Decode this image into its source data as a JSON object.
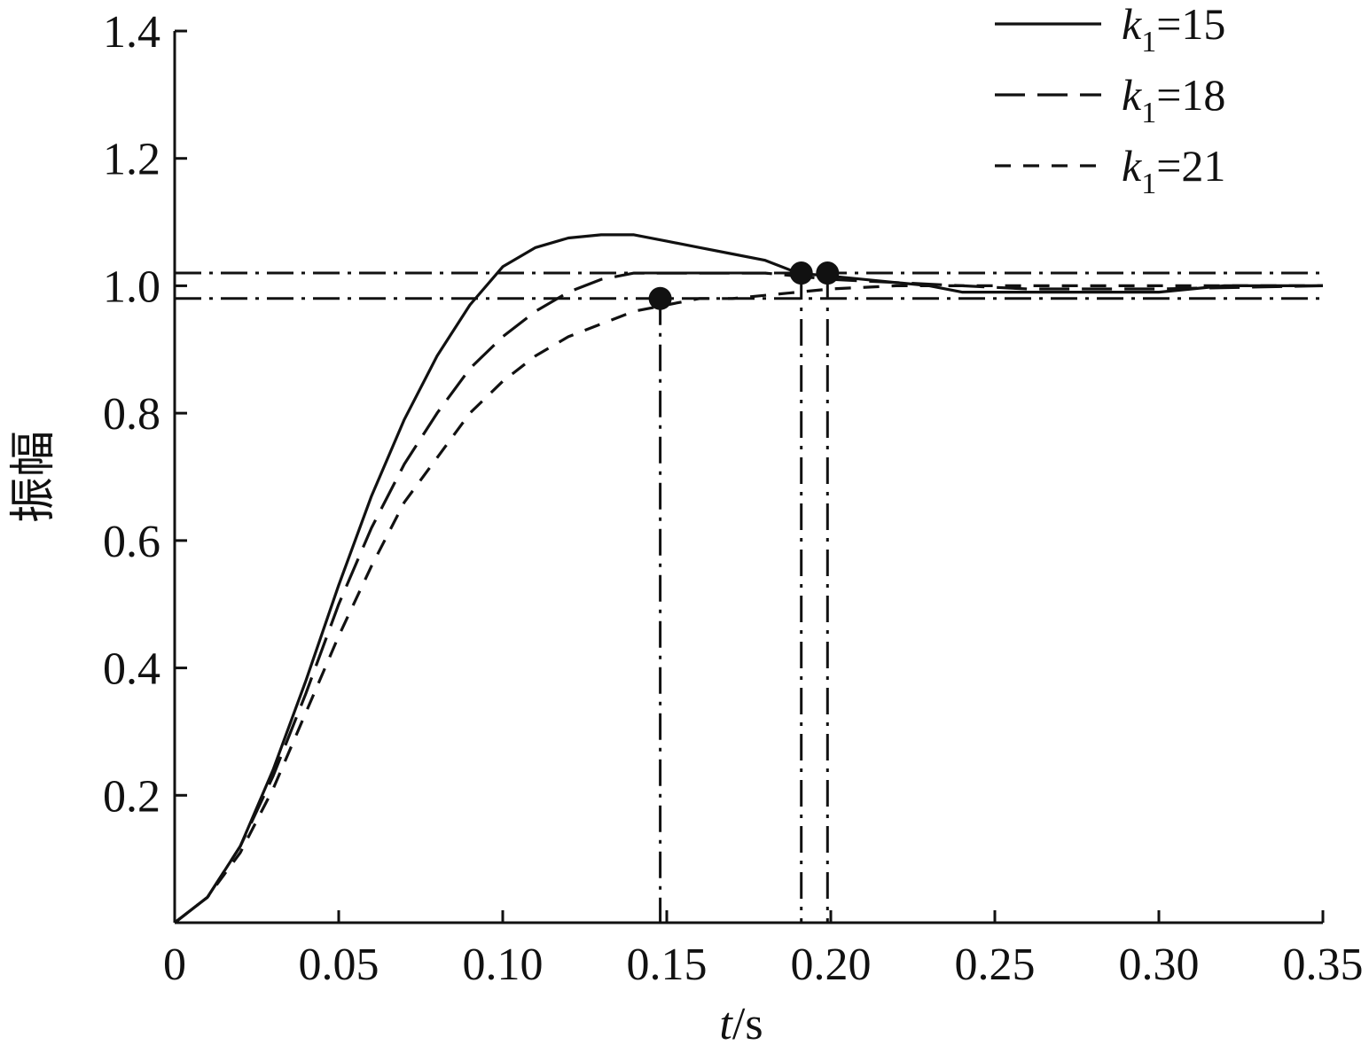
{
  "chart_data": {
    "type": "line",
    "xlabel_italic": "t",
    "xlabel_rest": "/s",
    "ylabel": "振幅",
    "xlim": [
      0,
      0.35
    ],
    "ylim": [
      0,
      1.4
    ],
    "x_ticks": [
      0,
      0.05,
      0.1,
      0.15,
      0.2,
      0.25,
      0.3,
      0.35
    ],
    "x_tick_labels": [
      "0",
      "0.05",
      "0.10",
      "0.15",
      "0.20",
      "0.25",
      "0.30",
      "0.35"
    ],
    "y_ticks": [
      0.2,
      0.4,
      0.6,
      0.8,
      1.0,
      1.2,
      1.4
    ],
    "y_tick_labels": [
      "0.2",
      "0.4",
      "0.6",
      "0.8",
      "1.0",
      "1.2",
      "1.4"
    ],
    "legend_position": "top-right",
    "series": [
      {
        "name": "k1=15",
        "legend_var": "k",
        "legend_sub": "1",
        "legend_val": "=15",
        "style": "solid",
        "points": [
          [
            0,
            0
          ],
          [
            0.01,
            0.04
          ],
          [
            0.02,
            0.12
          ],
          [
            0.03,
            0.24
          ],
          [
            0.04,
            0.38
          ],
          [
            0.05,
            0.53
          ],
          [
            0.06,
            0.67
          ],
          [
            0.07,
            0.79
          ],
          [
            0.08,
            0.89
          ],
          [
            0.09,
            0.97
          ],
          [
            0.1,
            1.03
          ],
          [
            0.11,
            1.06
          ],
          [
            0.12,
            1.075
          ],
          [
            0.13,
            1.08
          ],
          [
            0.14,
            1.08
          ],
          [
            0.15,
            1.07
          ],
          [
            0.16,
            1.06
          ],
          [
            0.17,
            1.05
          ],
          [
            0.18,
            1.04
          ],
          [
            0.19,
            1.02
          ],
          [
            0.2,
            1.015
          ],
          [
            0.21,
            1.01
          ],
          [
            0.22,
            1.005
          ],
          [
            0.23,
            1.0
          ],
          [
            0.24,
            0.99
          ],
          [
            0.25,
            0.99
          ],
          [
            0.26,
            0.99
          ],
          [
            0.28,
            0.99
          ],
          [
            0.3,
            0.99
          ],
          [
            0.32,
            1.0
          ],
          [
            0.35,
            1.0
          ]
        ]
      },
      {
        "name": "k1=18",
        "legend_var": "k",
        "legend_sub": "1",
        "legend_val": "=18",
        "style": "longdash",
        "points": [
          [
            0,
            0
          ],
          [
            0.01,
            0.04
          ],
          [
            0.02,
            0.12
          ],
          [
            0.03,
            0.23
          ],
          [
            0.04,
            0.36
          ],
          [
            0.05,
            0.5
          ],
          [
            0.06,
            0.62
          ],
          [
            0.07,
            0.72
          ],
          [
            0.08,
            0.8
          ],
          [
            0.09,
            0.87
          ],
          [
            0.1,
            0.92
          ],
          [
            0.11,
            0.96
          ],
          [
            0.12,
            0.99
          ],
          [
            0.13,
            1.01
          ],
          [
            0.14,
            1.02
          ],
          [
            0.15,
            1.02
          ],
          [
            0.16,
            1.02
          ],
          [
            0.17,
            1.02
          ],
          [
            0.18,
            1.02
          ],
          [
            0.19,
            1.015
          ],
          [
            0.2,
            1.01
          ],
          [
            0.22,
            1.005
          ],
          [
            0.24,
            1.0
          ],
          [
            0.26,
            0.995
          ],
          [
            0.28,
            0.995
          ],
          [
            0.3,
            0.995
          ],
          [
            0.35,
            1.0
          ]
        ]
      },
      {
        "name": "k1=21",
        "legend_var": "k",
        "legend_sub": "1",
        "legend_val": "=21",
        "style": "shortdash",
        "points": [
          [
            0,
            0
          ],
          [
            0.01,
            0.04
          ],
          [
            0.02,
            0.11
          ],
          [
            0.03,
            0.21
          ],
          [
            0.04,
            0.33
          ],
          [
            0.05,
            0.45
          ],
          [
            0.06,
            0.56
          ],
          [
            0.07,
            0.66
          ],
          [
            0.08,
            0.73
          ],
          [
            0.09,
            0.8
          ],
          [
            0.1,
            0.85
          ],
          [
            0.11,
            0.89
          ],
          [
            0.12,
            0.92
          ],
          [
            0.13,
            0.94
          ],
          [
            0.14,
            0.96
          ],
          [
            0.15,
            0.97
          ],
          [
            0.16,
            0.98
          ],
          [
            0.17,
            0.98
          ],
          [
            0.18,
            0.985
          ],
          [
            0.19,
            0.99
          ],
          [
            0.2,
            0.995
          ],
          [
            0.22,
            1.0
          ],
          [
            0.25,
            1.0
          ],
          [
            0.3,
            1.0
          ],
          [
            0.35,
            1.0
          ]
        ]
      }
    ],
    "reference_lines_y": [
      1.02,
      0.98
    ],
    "markers": [
      {
        "x": 0.148,
        "y": 0.98
      },
      {
        "x": 0.191,
        "y": 1.02
      },
      {
        "x": 0.199,
        "y": 1.02
      }
    ]
  }
}
